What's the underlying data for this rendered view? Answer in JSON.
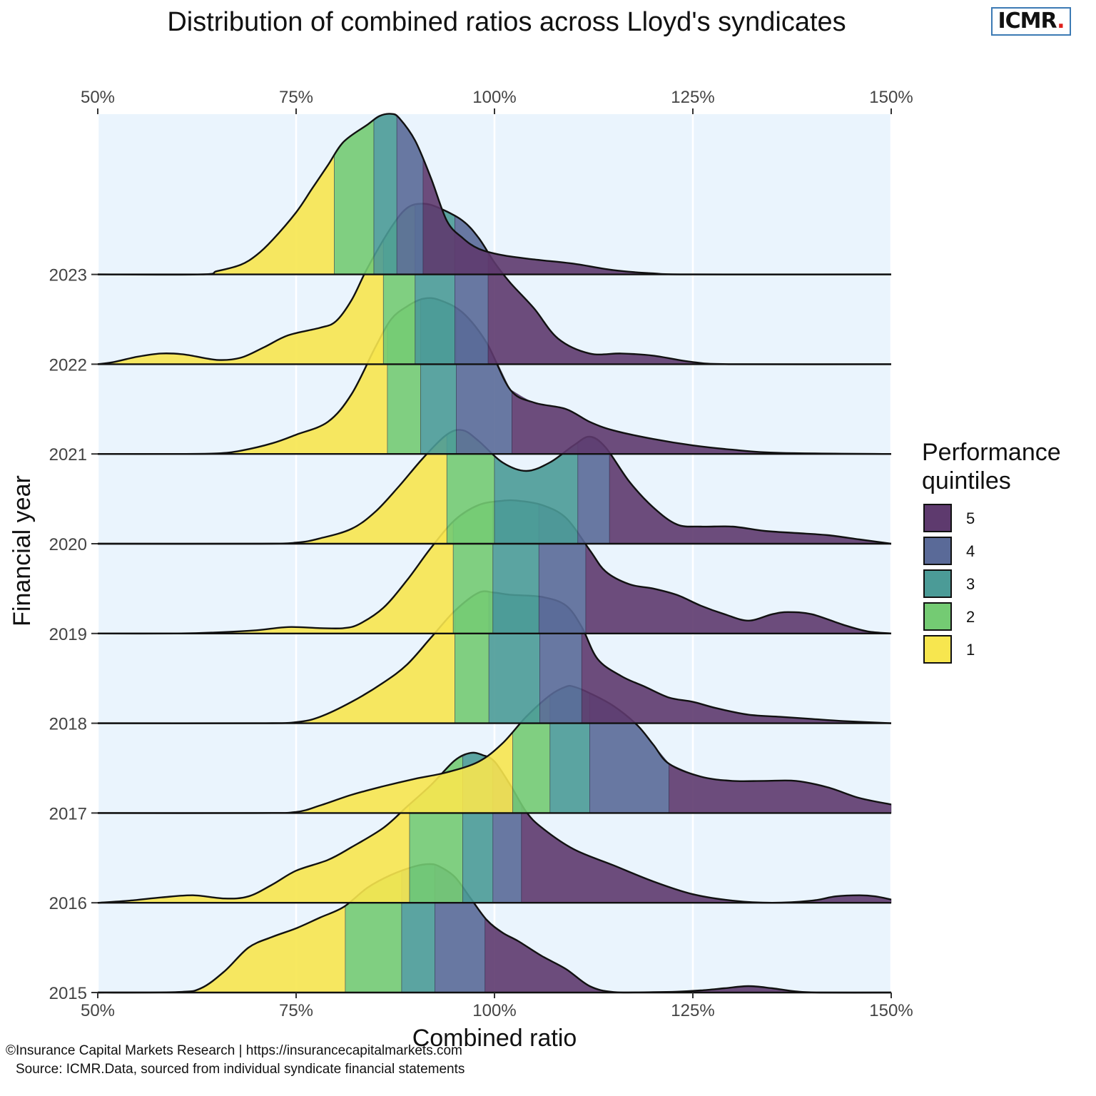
{
  "title": "Distribution of combined ratios across Lloyd's syndicates",
  "logo": {
    "text": "ICMR",
    "dot": "."
  },
  "footer": {
    "line1": "©Insurance Capital Markets Research | https://insurancecapitalmarkets.com",
    "line2": "Source: ICMR.Data, sourced from individual syndicate financial statements"
  },
  "colors": {
    "panel_bg": "#eaf4fd",
    "grid": "#ffffff",
    "q1": "#f7e64f",
    "q2": "#74cb73",
    "q3": "#4b9b97",
    "q4": "#5a6a98",
    "q5": "#5e3a6e",
    "outline": "#111111",
    "logo_border": "#3c7ab4",
    "logo_dot": "#e0201c"
  },
  "legend": {
    "title": "Performance quintiles",
    "items": [
      {
        "label": "5",
        "color": "#5e3a6e"
      },
      {
        "label": "4",
        "color": "#5a6a98"
      },
      {
        "label": "3",
        "color": "#4b9b97"
      },
      {
        "label": "2",
        "color": "#74cb73"
      },
      {
        "label": "1",
        "color": "#f7e64f"
      }
    ]
  },
  "chart_data": {
    "type": "ridgeline density",
    "title": "Distribution of combined ratios across Lloyd's syndicates",
    "xlabel": "Combined ratio",
    "ylabel": "Financial year",
    "xlim": [
      50,
      150
    ],
    "x_ticks": [
      50,
      75,
      100,
      125,
      150
    ],
    "x_tick_labels": [
      "50%",
      "75%",
      "100%",
      "125%",
      "150%"
    ],
    "x_axis_positions": [
      "top",
      "bottom"
    ],
    "y_categories": [
      "2015",
      "2016",
      "2017",
      "2018",
      "2019",
      "2020",
      "2021",
      "2022",
      "2023"
    ],
    "grid": "vertical major lines only",
    "legend_position": "right",
    "quintile_order_note": "quintile 1 = lowest combined ratios (best), quintile 5 = highest",
    "series": [
      {
        "year": "2015",
        "quintile_breaks": [
          81.2,
          88.3,
          92.5,
          98.8
        ],
        "density": [
          [
            50,
            0
          ],
          [
            60,
            0.005
          ],
          [
            63,
            0.04
          ],
          [
            66,
            0.2
          ],
          [
            69,
            0.42
          ],
          [
            72,
            0.52
          ],
          [
            75,
            0.6
          ],
          [
            78,
            0.7
          ],
          [
            81,
            0.8
          ],
          [
            84,
            0.98
          ],
          [
            87,
            1.1
          ],
          [
            90,
            1.18
          ],
          [
            91.8,
            1.2
          ],
          [
            93,
            1.18
          ],
          [
            95,
            1.08
          ],
          [
            97,
            0.88
          ],
          [
            99,
            0.68
          ],
          [
            101,
            0.56
          ],
          [
            103,
            0.48
          ],
          [
            106,
            0.34
          ],
          [
            109,
            0.22
          ],
          [
            112,
            0.06
          ],
          [
            115,
            0.005
          ],
          [
            120,
            0.004
          ],
          [
            123,
            0.008
          ],
          [
            126,
            0.02
          ],
          [
            129,
            0.04
          ],
          [
            132,
            0.06
          ],
          [
            135,
            0.04
          ],
          [
            138,
            0.01
          ],
          [
            141,
            0
          ],
          [
            150,
            0
          ]
        ]
      },
      {
        "year": "2016",
        "quintile_breaks": [
          89.3,
          96.0,
          99.8,
          103.4
        ],
        "density": [
          [
            50,
            0
          ],
          [
            54,
            0.02
          ],
          [
            58,
            0.05
          ],
          [
            62,
            0.07
          ],
          [
            66,
            0.04
          ],
          [
            69,
            0.06
          ],
          [
            72,
            0.17
          ],
          [
            75,
            0.3
          ],
          [
            79,
            0.4
          ],
          [
            82,
            0.52
          ],
          [
            86,
            0.7
          ],
          [
            89,
            0.9
          ],
          [
            92,
            1.1
          ],
          [
            95,
            1.33
          ],
          [
            97,
            1.4
          ],
          [
            98.5,
            1.38
          ],
          [
            100,
            1.32
          ],
          [
            102,
            1.1
          ],
          [
            104,
            0.85
          ],
          [
            106,
            0.7
          ],
          [
            110,
            0.5
          ],
          [
            115,
            0.35
          ],
          [
            120,
            0.2
          ],
          [
            125,
            0.08
          ],
          [
            130,
            0.02
          ],
          [
            135,
            0
          ],
          [
            140,
            0.02
          ],
          [
            143,
            0.06
          ],
          [
            146,
            0.07
          ],
          [
            148,
            0.06
          ],
          [
            150,
            0.03
          ]
        ]
      },
      {
        "year": "2017",
        "quintile_breaks": [
          102.3,
          107.0,
          112.0,
          122.0
        ],
        "density": [
          [
            50,
            0
          ],
          [
            70,
            0
          ],
          [
            75,
            0.01
          ],
          [
            78,
            0.07
          ],
          [
            82,
            0.17
          ],
          [
            86,
            0.25
          ],
          [
            90,
            0.32
          ],
          [
            94,
            0.38
          ],
          [
            98,
            0.48
          ],
          [
            101,
            0.65
          ],
          [
            104,
            0.9
          ],
          [
            107,
            1.1
          ],
          [
            109,
            1.18
          ],
          [
            110,
            1.18
          ],
          [
            112,
            1.12
          ],
          [
            115,
            1.0
          ],
          [
            118,
            0.82
          ],
          [
            120,
            0.64
          ],
          [
            122,
            0.46
          ],
          [
            126,
            0.34
          ],
          [
            130,
            0.3
          ],
          [
            134,
            0.3
          ],
          [
            138,
            0.3
          ],
          [
            142,
            0.24
          ],
          [
            146,
            0.14
          ],
          [
            150,
            0.08
          ]
        ]
      },
      {
        "year": "2018",
        "quintile_breaks": [
          95.0,
          99.3,
          105.7,
          111.0
        ],
        "density": [
          [
            50,
            0
          ],
          [
            70,
            0
          ],
          [
            75,
            0.01
          ],
          [
            78,
            0.06
          ],
          [
            82,
            0.2
          ],
          [
            86,
            0.38
          ],
          [
            89,
            0.55
          ],
          [
            92,
            0.8
          ],
          [
            95,
            1.05
          ],
          [
            98,
            1.22
          ],
          [
            100,
            1.22
          ],
          [
            102,
            1.2
          ],
          [
            106,
            1.18
          ],
          [
            109,
            1.1
          ],
          [
            111,
            0.9
          ],
          [
            113,
            0.6
          ],
          [
            116,
            0.44
          ],
          [
            119,
            0.34
          ],
          [
            122,
            0.24
          ],
          [
            125,
            0.2
          ],
          [
            128,
            0.14
          ],
          [
            132,
            0.08
          ],
          [
            136,
            0.06
          ],
          [
            140,
            0.04
          ],
          [
            144,
            0.02
          ],
          [
            150,
            0
          ]
        ]
      },
      {
        "year": "2019",
        "quintile_breaks": [
          94.8,
          99.8,
          105.6,
          111.5
        ],
        "density": [
          [
            50,
            0
          ],
          [
            60,
            0
          ],
          [
            65,
            0.01
          ],
          [
            70,
            0.03
          ],
          [
            74,
            0.06
          ],
          [
            78,
            0.05
          ],
          [
            81,
            0.05
          ],
          [
            83,
            0.09
          ],
          [
            86,
            0.24
          ],
          [
            89,
            0.5
          ],
          [
            92,
            0.8
          ],
          [
            95,
            1.06
          ],
          [
            98,
            1.2
          ],
          [
            101,
            1.24
          ],
          [
            103,
            1.24
          ],
          [
            106,
            1.2
          ],
          [
            109,
            1.08
          ],
          [
            112,
            0.78
          ],
          [
            114,
            0.58
          ],
          [
            117,
            0.46
          ],
          [
            120,
            0.42
          ],
          [
            123,
            0.36
          ],
          [
            126,
            0.26
          ],
          [
            129,
            0.18
          ],
          [
            132,
            0.12
          ],
          [
            135,
            0.18
          ],
          [
            137,
            0.2
          ],
          [
            140,
            0.18
          ],
          [
            144,
            0.08
          ],
          [
            147,
            0.02
          ],
          [
            150,
            0
          ]
        ]
      },
      {
        "year": "2020",
        "quintile_breaks": [
          94.0,
          100.0,
          110.5,
          114.5
        ],
        "density": [
          [
            50,
            0
          ],
          [
            70,
            0
          ],
          [
            75,
            0.01
          ],
          [
            78,
            0.05
          ],
          [
            82,
            0.14
          ],
          [
            85,
            0.3
          ],
          [
            88,
            0.54
          ],
          [
            91,
            0.8
          ],
          [
            94,
            1.02
          ],
          [
            96,
            1.06
          ],
          [
            98,
            0.96
          ],
          [
            101,
            0.76
          ],
          [
            104,
            0.68
          ],
          [
            107,
            0.76
          ],
          [
            110,
            0.92
          ],
          [
            112,
            1.0
          ],
          [
            114,
            0.9
          ],
          [
            117,
            0.58
          ],
          [
            120,
            0.34
          ],
          [
            123,
            0.18
          ],
          [
            126,
            0.16
          ],
          [
            130,
            0.16
          ],
          [
            134,
            0.12
          ],
          [
            138,
            0.1
          ],
          [
            142,
            0.08
          ],
          [
            146,
            0.04
          ],
          [
            150,
            0
          ]
        ]
      },
      {
        "year": "2021",
        "quintile_breaks": [
          86.5,
          90.7,
          95.2,
          102.2
        ],
        "density": [
          [
            50,
            0
          ],
          [
            60,
            0
          ],
          [
            65,
            0.005
          ],
          [
            68,
            0.03
          ],
          [
            72,
            0.1
          ],
          [
            75,
            0.18
          ],
          [
            79,
            0.3
          ],
          [
            82,
            0.56
          ],
          [
            85,
            1.0
          ],
          [
            87,
            1.26
          ],
          [
            89,
            1.38
          ],
          [
            91,
            1.45
          ],
          [
            93,
            1.44
          ],
          [
            96,
            1.32
          ],
          [
            99,
            1.04
          ],
          [
            102,
            0.6
          ],
          [
            105,
            0.48
          ],
          [
            109,
            0.42
          ],
          [
            112,
            0.3
          ],
          [
            115,
            0.22
          ],
          [
            120,
            0.14
          ],
          [
            125,
            0.08
          ],
          [
            130,
            0.04
          ],
          [
            136,
            0.01
          ],
          [
            150,
            0
          ]
        ]
      },
      {
        "year": "2022",
        "quintile_breaks": [
          86.0,
          90.0,
          95.0,
          99.2
        ],
        "density": [
          [
            50,
            0
          ],
          [
            52,
            0.02
          ],
          [
            55,
            0.07
          ],
          [
            58,
            0.1
          ],
          [
            61,
            0.09
          ],
          [
            65,
            0.04
          ],
          [
            68,
            0.06
          ],
          [
            71,
            0.16
          ],
          [
            74,
            0.27
          ],
          [
            78,
            0.34
          ],
          [
            80,
            0.4
          ],
          [
            82,
            0.6
          ],
          [
            84,
            0.9
          ],
          [
            87,
            1.28
          ],
          [
            89,
            1.46
          ],
          [
            91,
            1.5
          ],
          [
            93,
            1.46
          ],
          [
            96,
            1.34
          ],
          [
            98,
            1.18
          ],
          [
            100,
            0.95
          ],
          [
            102,
            0.76
          ],
          [
            105,
            0.52
          ],
          [
            108,
            0.24
          ],
          [
            112,
            0.1
          ],
          [
            116,
            0.1
          ],
          [
            120,
            0.08
          ],
          [
            125,
            0.02
          ],
          [
            130,
            0
          ],
          [
            150,
            0
          ]
        ]
      },
      {
        "year": "2023",
        "quintile_breaks": [
          79.8,
          84.8,
          87.7,
          91.0
        ],
        "density": [
          [
            50,
            0
          ],
          [
            63,
            0
          ],
          [
            65,
            0.03
          ],
          [
            68,
            0.09
          ],
          [
            70,
            0.18
          ],
          [
            72,
            0.32
          ],
          [
            75,
            0.58
          ],
          [
            77,
            0.8
          ],
          [
            79,
            1.02
          ],
          [
            81,
            1.24
          ],
          [
            84,
            1.4
          ],
          [
            85.5,
            1.48
          ],
          [
            87,
            1.5
          ],
          [
            88,
            1.46
          ],
          [
            90,
            1.25
          ],
          [
            92,
            0.9
          ],
          [
            94,
            0.5
          ],
          [
            96,
            0.34
          ],
          [
            98,
            0.24
          ],
          [
            101,
            0.18
          ],
          [
            105,
            0.14
          ],
          [
            110,
            0.1
          ],
          [
            115,
            0.04
          ],
          [
            120,
            0.01
          ],
          [
            125,
            0
          ],
          [
            150,
            0
          ]
        ]
      }
    ]
  }
}
